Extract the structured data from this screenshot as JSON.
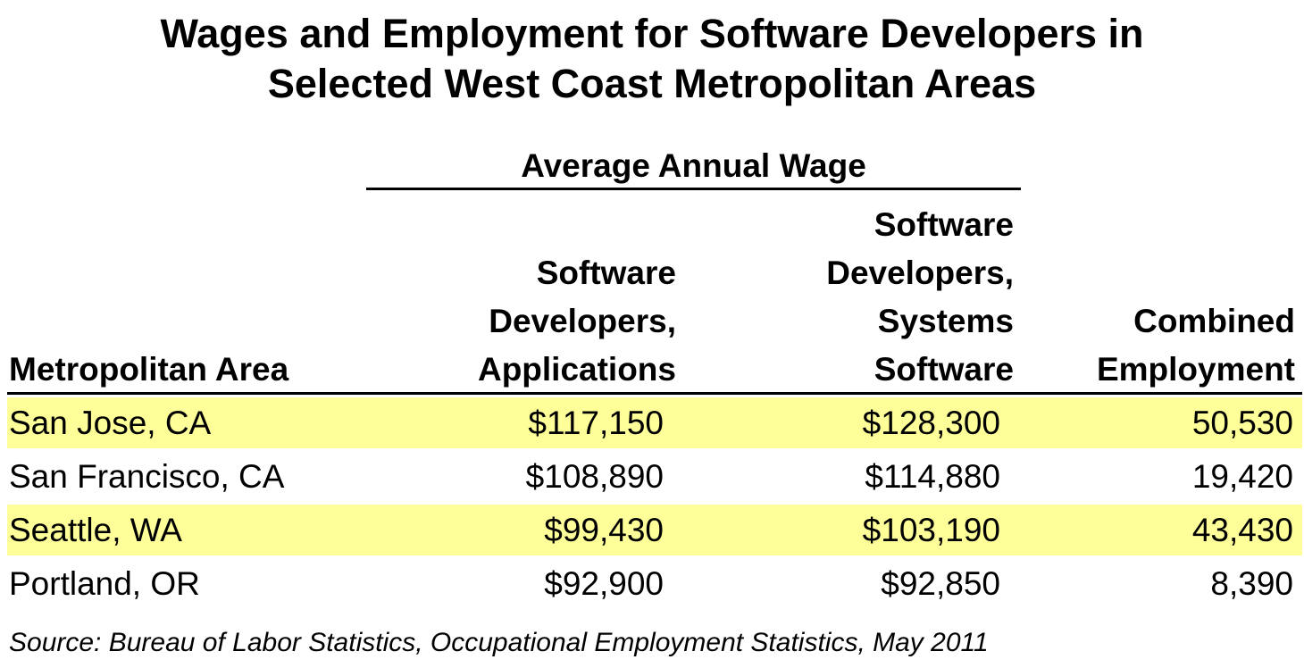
{
  "chart_data": {
    "type": "table",
    "title_lines": [
      "Wages and Employment for Software Developers in",
      "Selected West Coast Metropolitan Areas"
    ],
    "group_header": "Average Annual Wage",
    "columns": [
      {
        "lines": [
          "Metropolitan Area"
        ]
      },
      {
        "lines": [
          "Software",
          "Developers,",
          "Applications"
        ]
      },
      {
        "lines": [
          "Software",
          "Developers,",
          "Systems",
          "Software"
        ]
      },
      {
        "lines": [
          "Combined",
          "Employment"
        ]
      }
    ],
    "rows": [
      {
        "area": "San Jose, CA",
        "applications": "$117,150",
        "systems": "$128,300",
        "employment": "50,530",
        "highlight": true
      },
      {
        "area": "San Francisco, CA",
        "applications": "$108,890",
        "systems": "$114,880",
        "employment": "19,420",
        "highlight": false
      },
      {
        "area": "Seattle, WA",
        "applications": "$99,430",
        "systems": "$103,190",
        "employment": "43,430",
        "highlight": true
      },
      {
        "area": "Portland, OR",
        "applications": "$92,900",
        "systems": "$92,850",
        "employment": "8,390",
        "highlight": false
      }
    ],
    "highlight_color": "#ffff99",
    "source": "Source: Bureau of Labor Statistics, Occupational Employment Statistics, May 2011"
  }
}
